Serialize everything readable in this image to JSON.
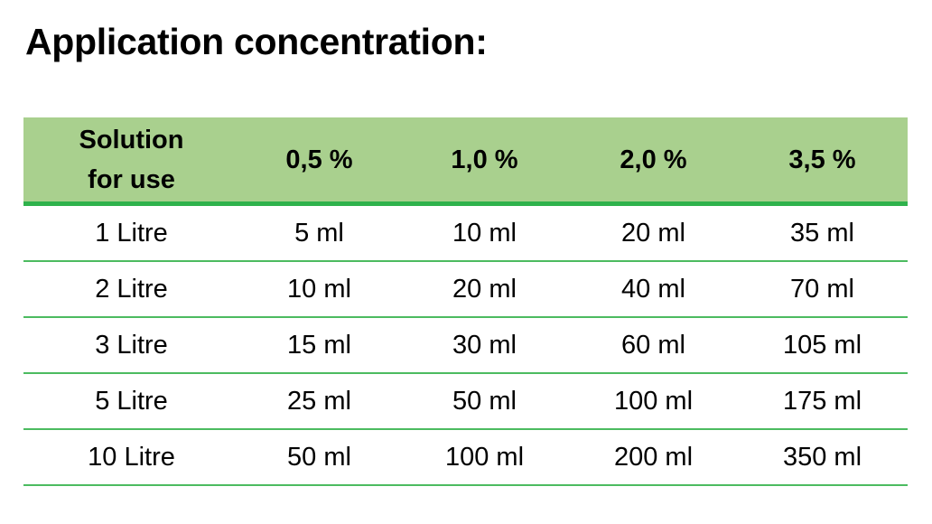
{
  "title": "Application concentration:",
  "table": {
    "header": {
      "first_line1": "Solution",
      "first_line2": "for use",
      "columns": [
        "0,5 %",
        "1,0 %",
        "2,0 %",
        "3,5 %"
      ]
    },
    "rows": [
      [
        "1 Litre",
        "5 ml",
        "10 ml",
        "20 ml",
        "35 ml"
      ],
      [
        "2 Litre",
        "10 ml",
        "20 ml",
        "40 ml",
        "70 ml"
      ],
      [
        "3 Litre",
        "15 ml",
        "30 ml",
        "60 ml",
        "105 ml"
      ],
      [
        "5 Litre",
        "25 ml",
        "50 ml",
        "100 ml",
        "175 ml"
      ],
      [
        "10 Litre",
        "50 ml",
        "100 ml",
        "200 ml",
        "350 ml"
      ]
    ]
  },
  "colors": {
    "header_bg": "#a9d08e",
    "header_rule": "#2fb24c",
    "row_rule": "#4cbb60"
  }
}
